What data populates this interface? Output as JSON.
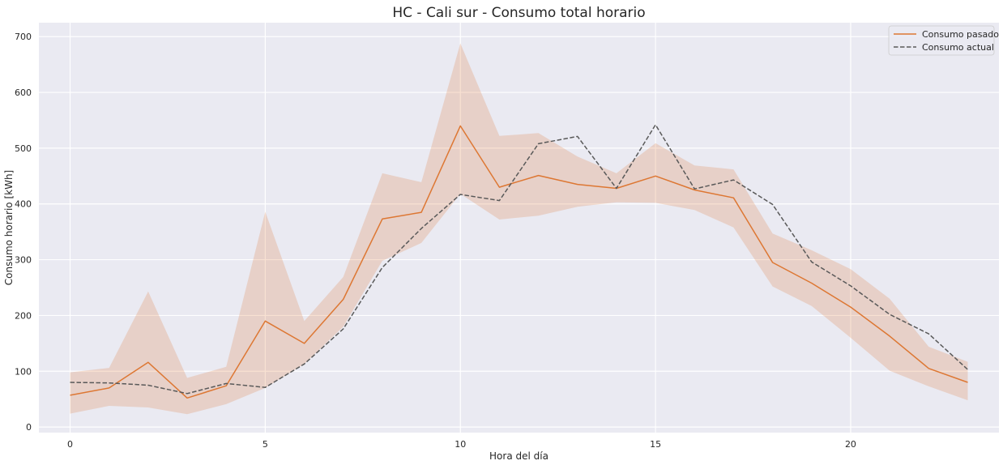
{
  "chart_data": {
    "type": "line",
    "title": "HC - Cali sur - Consumo total horario",
    "xlabel": "Hora del día",
    "ylabel": "Consumo horario [kWh]",
    "xlim": [
      -0.8,
      23.8
    ],
    "ylim": [
      -10,
      725
    ],
    "xticks": [
      0,
      5,
      10,
      15,
      20
    ],
    "yticks": [
      0,
      100,
      200,
      300,
      400,
      500,
      600,
      700
    ],
    "grid": true,
    "legend_position": "top-right",
    "x": [
      0,
      1,
      2,
      3,
      4,
      5,
      6,
      7,
      8,
      9,
      10,
      11,
      12,
      13,
      14,
      15,
      16,
      17,
      18,
      19,
      20,
      21,
      22,
      23
    ],
    "series": [
      {
        "name": "Consumo pasado",
        "style": "solid",
        "color": "#dd7733",
        "values": [
          57,
          70,
          116,
          52,
          74,
          190,
          150,
          229,
          373,
          385,
          540,
          430,
          451,
          435,
          428,
          450,
          425,
          411,
          295,
          258,
          215,
          163,
          105,
          80
        ],
        "band_lower": [
          24,
          38,
          35,
          23,
          41,
          70,
          113,
          180,
          298,
          330,
          418,
          372,
          379,
          395,
          403,
          402,
          389,
          358,
          252,
          217,
          160,
          101,
          73,
          48
        ],
        "band_upper": [
          98,
          106,
          243,
          88,
          108,
          386,
          190,
          269,
          455,
          439,
          688,
          522,
          527,
          485,
          455,
          509,
          469,
          462,
          347,
          317,
          283,
          230,
          144,
          117
        ]
      },
      {
        "name": "Consumo actual",
        "style": "dashed",
        "color": "#595959",
        "values": [
          80,
          79,
          75,
          60,
          78,
          71,
          113,
          176,
          286,
          356,
          417,
          406,
          508,
          521,
          428,
          542,
          427,
          443,
          399,
          296,
          253,
          202,
          167,
          103
        ]
      }
    ],
    "colors": {
      "background": "#eaeaf2",
      "grid": "#ffffff",
      "band": "#dd7733"
    }
  }
}
